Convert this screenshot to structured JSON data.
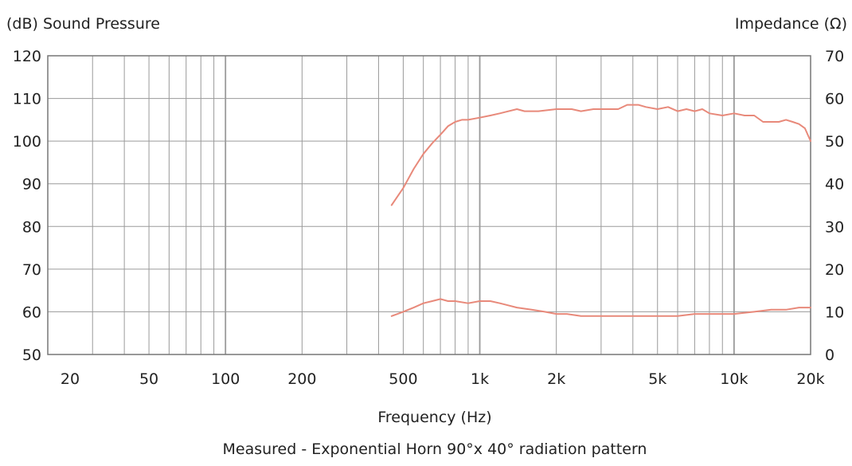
{
  "chart_data": {
    "type": "line",
    "title": "",
    "caption": "Measured - Exponential Horn 90°x 40° radiation pattern",
    "xlabel": "Frequency (Hz)",
    "ylabel_left": "(dB) Sound Pressure",
    "ylabel_right": "Impedance (Ω)",
    "x_scale": "log",
    "xlim": [
      20,
      20000
    ],
    "ylim_left": [
      50,
      120
    ],
    "ylim_right": [
      0,
      70
    ],
    "grid": true,
    "x_ticks": [
      20,
      50,
      100,
      200,
      500,
      1000,
      2000,
      5000,
      10000,
      20000
    ],
    "x_tick_labels": [
      "20",
      "50",
      "100",
      "200",
      "500",
      "1k",
      "2k",
      "5k",
      "10k",
      "20k"
    ],
    "y_ticks_left": [
      120,
      110,
      100,
      90,
      80,
      70,
      60,
      50
    ],
    "y_ticks_right": [
      70,
      60,
      50,
      40,
      30,
      20,
      10,
      0
    ],
    "line_color": "#e8897a",
    "grid_color": "#9a9a9a",
    "series": [
      {
        "axis": "left",
        "unit": "dB",
        "x": [
          450,
          500,
          550,
          600,
          650,
          700,
          750,
          800,
          850,
          900,
          1000,
          1100,
          1200,
          1400,
          1500,
          1700,
          2000,
          2300,
          2500,
          2800,
          3000,
          3500,
          3800,
          4200,
          4500,
          5000,
          5500,
          6000,
          6500,
          7000,
          7500,
          8000,
          9000,
          10000,
          11000,
          12000,
          13000,
          14000,
          15000,
          16000,
          17000,
          18000,
          19000,
          20000
        ],
        "y": [
          85,
          89,
          93.5,
          97,
          99.5,
          101.5,
          103.5,
          104.5,
          105,
          105,
          105.5,
          106,
          106.5,
          107.5,
          107,
          107,
          107.5,
          107.5,
          107,
          107.5,
          107.5,
          107.5,
          108.5,
          108.5,
          108,
          107.5,
          108,
          107,
          107.5,
          107,
          107.5,
          106.5,
          106,
          106.5,
          106,
          106,
          104.5,
          104.5,
          104.5,
          105,
          104.5,
          104,
          103,
          100
        ]
      },
      {
        "axis": "right",
        "unit": "Ω",
        "x": [
          450,
          500,
          550,
          600,
          650,
          700,
          750,
          800,
          900,
          1000,
          1100,
          1200,
          1400,
          1600,
          1800,
          2000,
          2200,
          2500,
          3000,
          3500,
          4000,
          5000,
          6000,
          7000,
          8000,
          9000,
          10000,
          12000,
          14000,
          16000,
          18000,
          20000
        ],
        "y": [
          9,
          10,
          11,
          12,
          12.5,
          13,
          12.5,
          12.5,
          12,
          12.5,
          12.5,
          12,
          11,
          10.5,
          10,
          9.5,
          9.5,
          9,
          9,
          9,
          9,
          9,
          9,
          9.5,
          9.5,
          9.5,
          9.5,
          10,
          10.5,
          10.5,
          11,
          11
        ]
      }
    ]
  }
}
